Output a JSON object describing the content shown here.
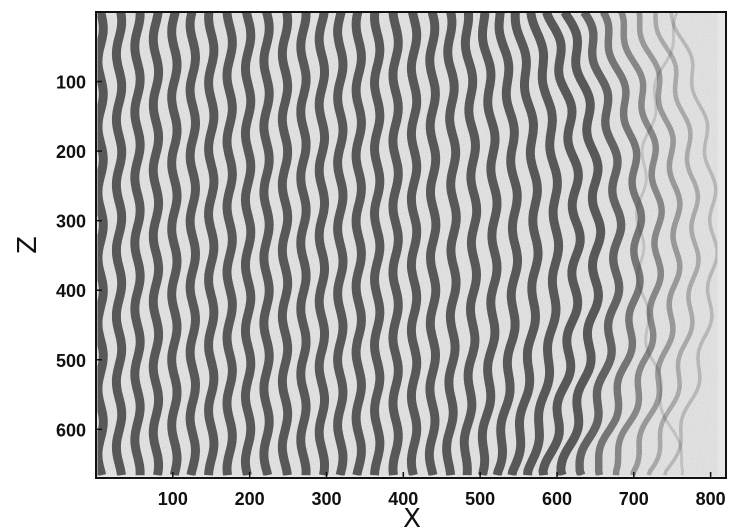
{
  "chart_data": {
    "type": "heatmap",
    "title": "",
    "xlabel": "X",
    "ylabel": "Z",
    "xlim": [
      0,
      820
    ],
    "ylim": [
      0,
      670
    ],
    "x_ticks": [
      100,
      200,
      300,
      400,
      500,
      600,
      700,
      800
    ],
    "y_ticks": [
      100,
      200,
      300,
      400,
      500,
      600
    ],
    "y_axis_direction": "downward",
    "colormap": "grayscale",
    "grid": false,
    "description_of_field": {
      "pattern": "interference fringes",
      "orientation": "near-vertical",
      "fringe_count": 34,
      "fringe_spacing_x": 24,
      "curvature_center": [
        790,
        320
      ]
    }
  },
  "colors": {
    "background": "#ffffff",
    "axes_frame": "#111111",
    "dark_fringe": "#4a4a4a",
    "light_fringe": "#e6e6e6"
  }
}
